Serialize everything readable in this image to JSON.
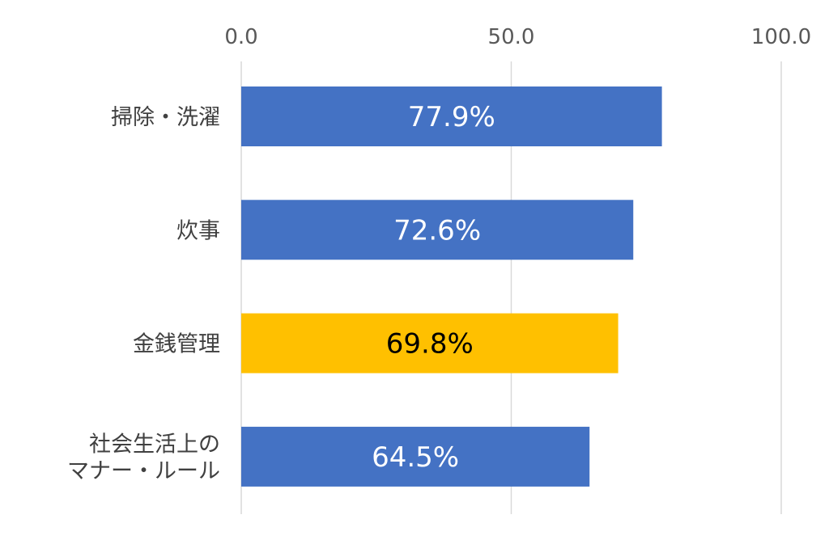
{
  "chart_data": {
    "type": "bar",
    "orientation": "horizontal",
    "categories": [
      [
        "掃除・洗濯"
      ],
      [
        "炊事"
      ],
      [
        "金銭管理"
      ],
      [
        "社会生活上の",
        "マナー・ルール"
      ]
    ],
    "values": [
      77.9,
      72.6,
      69.8,
      64.5
    ],
    "data_labels": [
      "77.9%",
      "72.6%",
      "69.8%",
      "64.5%"
    ],
    "bar_colors": [
      "#4472C4",
      "#4472C4",
      "#FFC000",
      "#4472C4"
    ],
    "label_colors": [
      "#FFFFFF",
      "#FFFFFF",
      "#000000",
      "#FFFFFF"
    ],
    "xlim": [
      0,
      100
    ],
    "xticks": [
      0,
      50,
      100
    ],
    "xtick_labels": [
      "0.0",
      "50.0",
      "100.0"
    ],
    "axis_position": "top",
    "grid": true,
    "legend": "none"
  }
}
